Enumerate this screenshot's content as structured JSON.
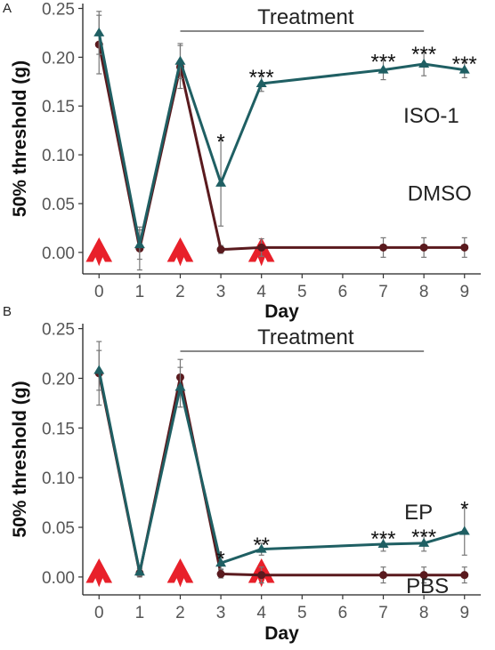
{
  "chart_data": [
    {
      "panel": "A",
      "type": "line",
      "xlabel": "Day",
      "ylabel": "50% threshold (g)",
      "x_ticks": [
        "0",
        "1",
        "2",
        "3",
        "4",
        "5",
        "6",
        "7",
        "8",
        "9"
      ],
      "y_ticks": [
        "0.00",
        "0.05",
        "0.10",
        "0.15",
        "0.20",
        "0.25"
      ],
      "xlim": [
        -0.4,
        9.4
      ],
      "ylim": [
        -0.022,
        0.255
      ],
      "annotation": "Treatment",
      "treatment_days": [
        2,
        8
      ],
      "arrow_days": [
        0,
        2,
        4
      ],
      "series": [
        {
          "name": "ISO-1",
          "color": "#1f5f63",
          "marker": "triangle",
          "x": [
            0,
            1,
            2,
            3,
            4,
            7,
            8,
            9
          ],
          "y": [
            0.225,
            0.008,
            0.196,
            0.071,
            0.173,
            0.187,
            0.193,
            0.187
          ],
          "err": [
            0.022,
            0.015,
            0.018,
            0.044,
            0.008,
            0.01,
            0.012,
            0.008
          ]
        },
        {
          "name": "DMSO",
          "color": "#5a1a1e",
          "marker": "circle",
          "x": [
            0,
            1,
            2,
            3,
            4,
            7,
            8,
            9
          ],
          "y": [
            0.213,
            0.004,
            0.19,
            0.003,
            0.005,
            0.005,
            0.005,
            0.005
          ],
          "err": [
            0.03,
            0.022,
            0.022,
            0.004,
            0.009,
            0.01,
            0.01,
            0.01
          ]
        }
      ],
      "significance": [
        {
          "x": 3,
          "label": "*"
        },
        {
          "x": 4,
          "label": "***"
        },
        {
          "x": 7,
          "label": "***"
        },
        {
          "x": 8,
          "label": "***"
        },
        {
          "x": 9,
          "label": "***"
        }
      ]
    },
    {
      "panel": "B",
      "type": "line",
      "xlabel": "Day",
      "ylabel": "50% threshold (g)",
      "x_ticks": [
        "0",
        "1",
        "2",
        "3",
        "4",
        "5",
        "6",
        "7",
        "8",
        "9"
      ],
      "y_ticks": [
        "0.00",
        "0.05",
        "0.10",
        "0.15",
        "0.20",
        "0.25"
      ],
      "xlim": [
        -0.4,
        9.4
      ],
      "ylim": [
        -0.018,
        0.255
      ],
      "annotation": "Treatment",
      "treatment_days": [
        2,
        8
      ],
      "arrow_days": [
        0,
        2,
        4
      ],
      "series": [
        {
          "name": "EP",
          "color": "#1f5f63",
          "marker": "triangle",
          "x": [
            0,
            1,
            2,
            3,
            4,
            7,
            8,
            9
          ],
          "y": [
            0.208,
            0.005,
            0.191,
            0.014,
            0.028,
            0.033,
            0.034,
            0.046
          ],
          "err": [
            0.02,
            0.004,
            0.02,
            0.006,
            0.006,
            0.007,
            0.008,
            0.024
          ]
        },
        {
          "name": "PBS",
          "color": "#5a1a1e",
          "marker": "circle",
          "x": [
            0,
            1,
            2,
            3,
            4,
            7,
            8,
            9
          ],
          "y": [
            0.205,
            0.004,
            0.201,
            0.003,
            0.002,
            0.002,
            0.002,
            0.002
          ],
          "err": [
            0.032,
            0.004,
            0.018,
            0.004,
            0.008,
            0.008,
            0.008,
            0.008
          ]
        }
      ],
      "significance": [
        {
          "x": 3,
          "label": "*"
        },
        {
          "x": 4,
          "label": "**"
        },
        {
          "x": 7,
          "label": "***"
        },
        {
          "x": 8,
          "label": "***"
        },
        {
          "x": 9,
          "label": "*"
        }
      ]
    }
  ]
}
